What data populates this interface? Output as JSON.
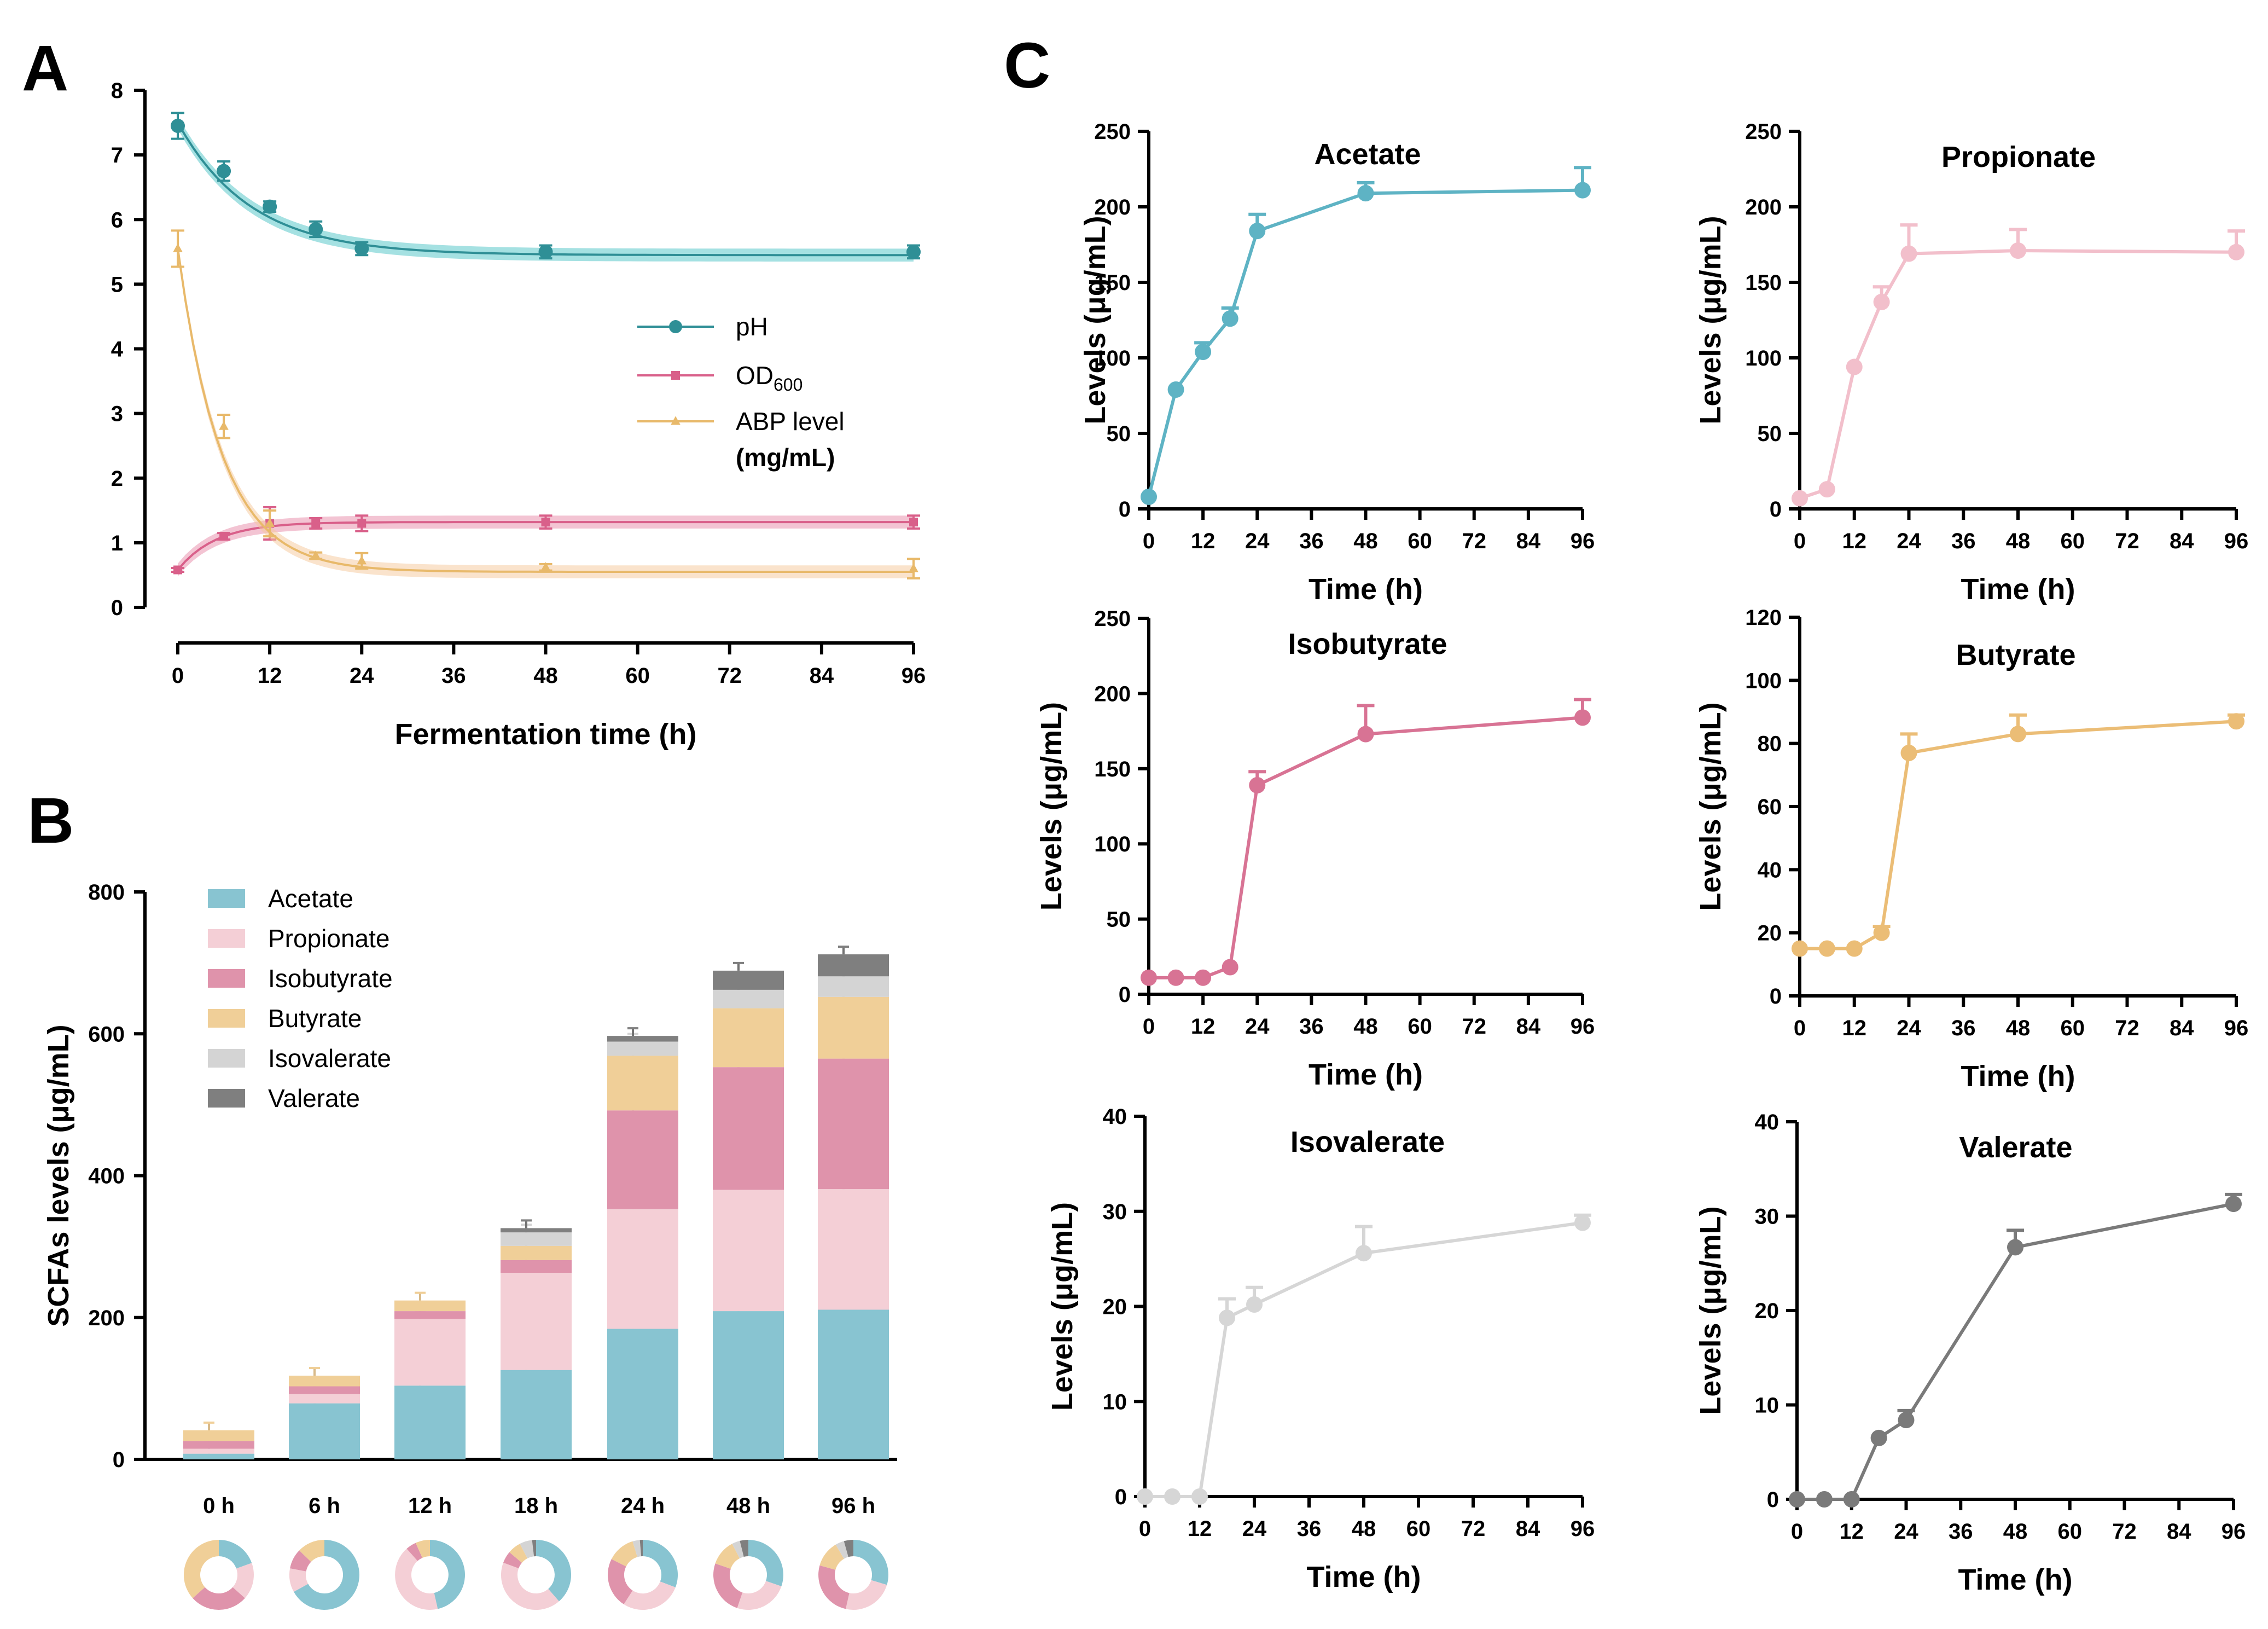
{
  "panels": {
    "A": "A",
    "B": "B",
    "C": "C"
  },
  "chart_data": [
    {
      "id": "A",
      "type": "line",
      "xlabel": "Fermentation time (h)",
      "ylabel": "",
      "ylim": [
        0,
        8
      ],
      "yticks": [
        0,
        1,
        2,
        3,
        4,
        5,
        6,
        7,
        8
      ],
      "xlim": [
        0,
        96
      ],
      "xticks": [
        0,
        12,
        24,
        36,
        48,
        60,
        72,
        84,
        96
      ],
      "series": [
        {
          "name": "pH",
          "color": "#2f8f96",
          "band": "#4cc4c6",
          "marker": "circle",
          "x": [
            0,
            6,
            12,
            18,
            24,
            48,
            96
          ],
          "values": [
            7.45,
            6.75,
            6.2,
            5.85,
            5.55,
            5.5,
            5.5
          ],
          "err": [
            0.2,
            0.15,
            0.08,
            0.12,
            0.1,
            0.1,
            0.1
          ],
          "fit": {
            "a": 5.45,
            "b": 2.05,
            "k": 0.105
          }
        },
        {
          "name": "OD600",
          "label_main": "OD",
          "label_sub": "600",
          "color": "#d9608a",
          "band": "#e88aa8",
          "marker": "square",
          "x": [
            0,
            6,
            12,
            18,
            24,
            48,
            96
          ],
          "values": [
            0.58,
            1.1,
            1.3,
            1.3,
            1.3,
            1.32,
            1.32
          ],
          "err": [
            0.03,
            0.05,
            0.25,
            0.08,
            0.12,
            0.1,
            0.1
          ],
          "fit": {
            "a": 1.32,
            "b": -0.74,
            "k": 0.2
          }
        },
        {
          "name": "ABP level",
          "label_line2": "(mg/mL)",
          "color": "#e8b96a",
          "band": "#f5c89a",
          "marker": "triangle",
          "x": [
            0,
            6,
            12,
            18,
            24,
            48,
            96
          ],
          "values": [
            5.55,
            2.8,
            1.3,
            0.8,
            0.72,
            0.62,
            0.6
          ],
          "err": [
            0.28,
            0.18,
            0.2,
            0.05,
            0.12,
            0.05,
            0.15
          ],
          "fit": {
            "a": 0.55,
            "b": 5.0,
            "k": 0.175
          }
        }
      ]
    },
    {
      "id": "B",
      "type": "bar",
      "stacked": true,
      "ylabel": "SCFAs levels (μg/mL)",
      "ylim": [
        0,
        800
      ],
      "yticks": [
        0,
        200,
        400,
        600,
        800
      ],
      "categories": [
        "0 h",
        "6 h",
        "12 h",
        "18 h",
        "24 h",
        "48 h",
        "96 h"
      ],
      "series": [
        {
          "name": "Acetate",
          "color": "#88c4d1",
          "values": [
            8,
            79,
            104,
            126,
            184,
            209,
            211
          ]
        },
        {
          "name": "Propionate",
          "color": "#f4cfd6",
          "values": [
            7,
            13,
            94,
            137,
            169,
            171,
            170
          ]
        },
        {
          "name": "Isobutyrate",
          "color": "#df93ab",
          "values": [
            11,
            11,
            11,
            18,
            139,
            173,
            184
          ]
        },
        {
          "name": "Butyrate",
          "color": "#f0cf98",
          "values": [
            15,
            15,
            15,
            20,
            77,
            83,
            87
          ]
        },
        {
          "name": "Isovalerate",
          "color": "#d4d4d4",
          "values": [
            0,
            0,
            0,
            19,
            20,
            26,
            29
          ]
        },
        {
          "name": "Valerate",
          "color": "#7f7f7f",
          "values": [
            0,
            0,
            0,
            6,
            8,
            27,
            31
          ]
        }
      ],
      "err_tops": [
        5,
        3,
        5,
        6,
        4,
        6,
        5
      ]
    },
    {
      "id": "C-acetate",
      "type": "line",
      "title": "Acetate",
      "color": "#5eb3c4",
      "xlabel": "Time (h)",
      "ylabel": "Levels (μg/mL)",
      "xticks": [
        0,
        12,
        24,
        36,
        48,
        60,
        72,
        84,
        96
      ],
      "xlim": [
        0,
        96
      ],
      "ylim": [
        0,
        250
      ],
      "yticks": [
        0,
        50,
        100,
        150,
        200,
        250
      ],
      "x": [
        0,
        6,
        12,
        18,
        24,
        48,
        96
      ],
      "values": [
        8,
        79,
        104,
        126,
        184,
        209,
        211
      ],
      "err": [
        0,
        0,
        6,
        7,
        11,
        7,
        15
      ]
    },
    {
      "id": "C-propionate",
      "type": "line",
      "title": "Propionate",
      "color": "#f2bfcb",
      "xlabel": "Time (h)",
      "ylabel": "Levels (μg/mL)",
      "xticks": [
        0,
        12,
        24,
        36,
        48,
        60,
        72,
        84,
        96
      ],
      "xlim": [
        0,
        96
      ],
      "ylim": [
        0,
        250
      ],
      "yticks": [
        0,
        50,
        100,
        150,
        200,
        250
      ],
      "x": [
        0,
        6,
        12,
        18,
        24,
        48,
        96
      ],
      "values": [
        7,
        13,
        94,
        137,
        169,
        171,
        170
      ],
      "err": [
        0,
        0,
        0,
        10,
        19,
        14,
        14
      ]
    },
    {
      "id": "C-isobutyrate",
      "type": "line",
      "title": "Isobutyrate",
      "color": "#d87394",
      "xlabel": "Time (h)",
      "ylabel": "Levels (μg/mL)",
      "xticks": [
        0,
        12,
        24,
        36,
        48,
        60,
        72,
        84,
        96
      ],
      "xlim": [
        0,
        96
      ],
      "ylim": [
        0,
        250
      ],
      "yticks": [
        0,
        50,
        100,
        150,
        200,
        250
      ],
      "x": [
        0,
        6,
        12,
        18,
        24,
        48,
        96
      ],
      "values": [
        11,
        11,
        11,
        18,
        139,
        173,
        184
      ],
      "err": [
        0,
        0,
        0,
        0,
        9,
        19,
        12
      ]
    },
    {
      "id": "C-butyrate",
      "type": "line",
      "title": "Butyrate",
      "color": "#ebbd76",
      "xlabel": "Time (h)",
      "ylabel": "Levels (μg/mL)",
      "xticks": [
        0,
        12,
        24,
        36,
        48,
        60,
        72,
        84,
        96
      ],
      "xlim": [
        0,
        96
      ],
      "ylim": [
        0,
        120
      ],
      "yticks": [
        0,
        20,
        40,
        60,
        80,
        100,
        120
      ],
      "x": [
        0,
        6,
        12,
        18,
        24,
        48,
        96
      ],
      "values": [
        15,
        15,
        15,
        20,
        77,
        83,
        87
      ],
      "err": [
        0,
        0,
        0,
        2,
        6,
        6,
        2
      ]
    },
    {
      "id": "C-isovalerate",
      "type": "line",
      "title": "Isovalerate",
      "color": "#d6d6d6",
      "xlabel": "Time (h)",
      "ylabel": "Levels (μg/mL)",
      "xticks": [
        0,
        12,
        24,
        36,
        48,
        60,
        72,
        84,
        96
      ],
      "xlim": [
        0,
        96
      ],
      "ylim": [
        0,
        40
      ],
      "yticks": [
        0,
        10,
        20,
        30,
        40
      ],
      "x": [
        0,
        6,
        12,
        18,
        24,
        48,
        96
      ],
      "values": [
        0,
        0,
        0,
        18.8,
        20.2,
        25.6,
        28.8
      ],
      "err": [
        0,
        0,
        0,
        2,
        1.8,
        2.8,
        0.8
      ]
    },
    {
      "id": "C-valerate",
      "type": "line",
      "title": "Valerate",
      "color": "#7a7a7a",
      "xlabel": "Time (h)",
      "ylabel": "Levels (μg/mL)",
      "xticks": [
        0,
        12,
        24,
        36,
        48,
        60,
        72,
        84,
        96
      ],
      "xlim": [
        0,
        96
      ],
      "ylim": [
        0,
        40
      ],
      "yticks": [
        0,
        10,
        20,
        30,
        40
      ],
      "x": [
        0,
        6,
        12,
        18,
        24,
        48,
        96
      ],
      "values": [
        0,
        0,
        0,
        6.5,
        8.4,
        26.7,
        31.3
      ],
      "err": [
        0,
        0,
        0,
        0,
        1,
        1.8,
        1
      ]
    }
  ]
}
